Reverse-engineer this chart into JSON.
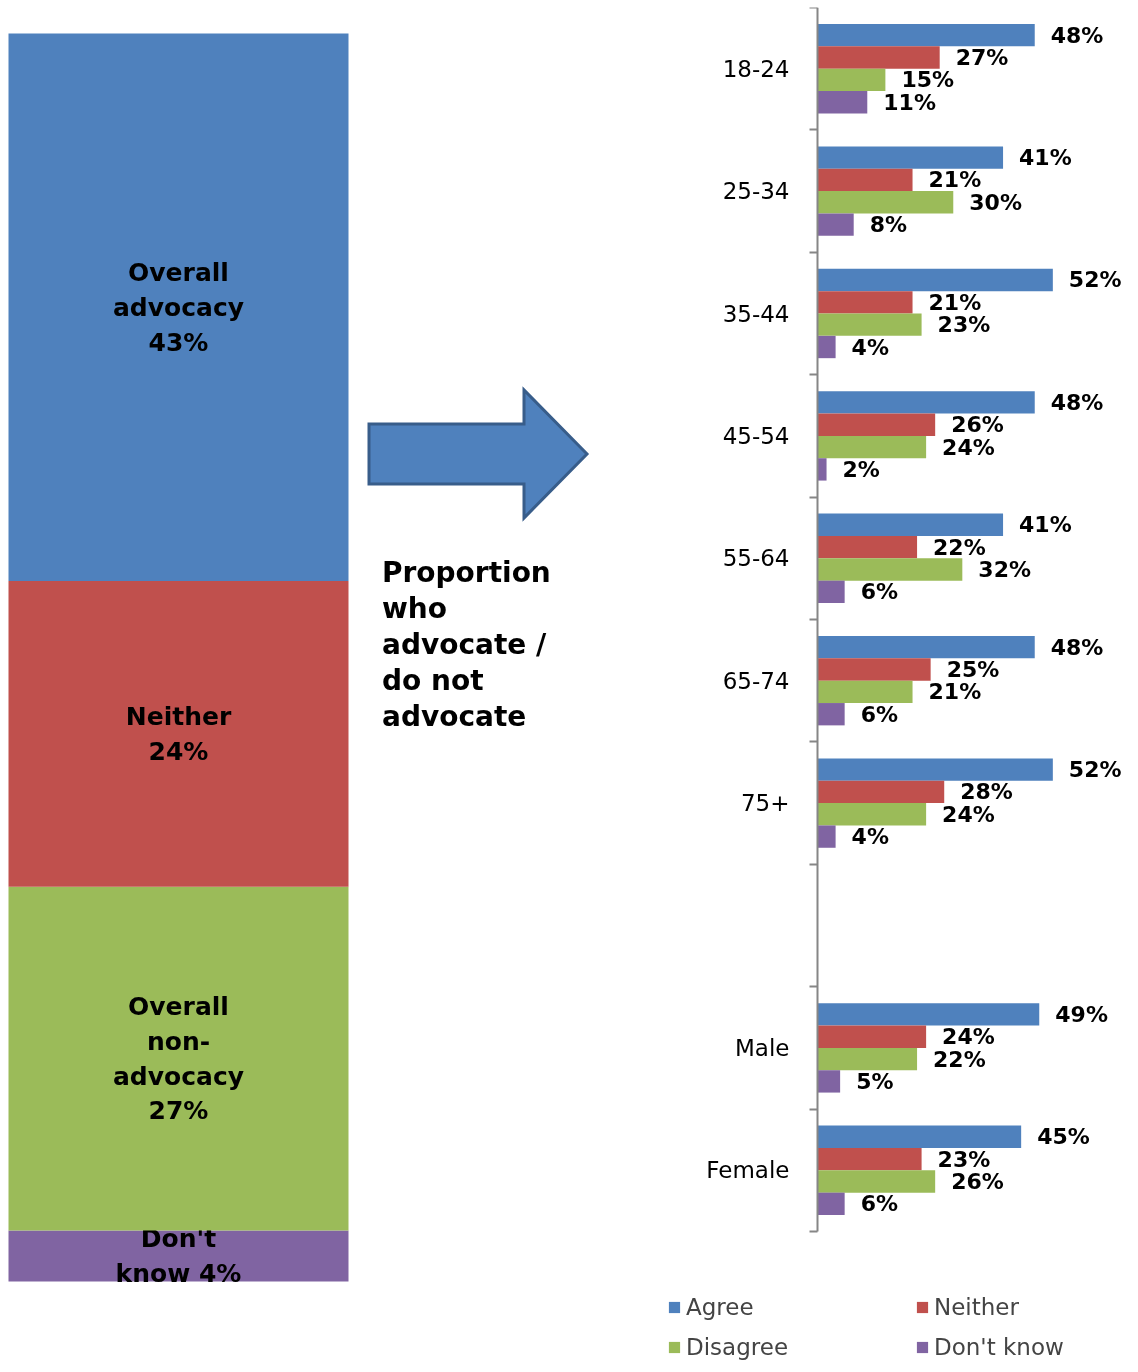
{
  "chart_data": [
    {
      "type": "bar",
      "stacked": true,
      "categories": [
        null
      ],
      "annotations": [
        "Proportion who advocate / do not advocate"
      ],
      "series": [
        {
          "color": "#8064a2",
          "values": [
            4
          ],
          "value_labels": [
            "Don't know 4%"
          ]
        },
        {
          "color": "#9bbb59",
          "values": [
            27
          ],
          "value_labels": [
            "Overall non-advocacy 27%"
          ]
        },
        {
          "color": "#c0504d",
          "values": [
            24
          ],
          "value_labels": [
            "Neither 24%"
          ]
        },
        {
          "color": "#4f81bd",
          "values": [
            43
          ],
          "value_labels": [
            "Overall advocacy 43%"
          ]
        }
      ]
    },
    {
      "type": "bar",
      "orientation": "horizontal",
      "legend": "bottom",
      "categories": [
        "18-24",
        "25-34",
        "35-44",
        "45-54",
        "55-64",
        "65-74",
        "75+",
        null,
        "Male",
        "Female"
      ],
      "series": [
        {
          "name": "Agree",
          "color": "#4f81bd",
          "values": [
            48,
            41,
            52,
            48,
            41,
            48,
            52,
            null,
            49,
            45
          ],
          "value_labels": [
            "48%",
            "41%",
            "52%",
            "48%",
            "41%",
            "48%",
            "52%",
            null,
            "49%",
            "45%"
          ]
        },
        {
          "name": "Neither",
          "color": "#c0504d",
          "values": [
            27,
            21,
            21,
            26,
            22,
            25,
            28,
            null,
            24,
            23
          ],
          "value_labels": [
            "27%",
            "21%",
            "21%",
            "26%",
            "22%",
            "25%",
            "28%",
            null,
            "24%",
            "23%"
          ]
        },
        {
          "name": "Disagree",
          "color": "#9bbb59",
          "values": [
            15,
            30,
            23,
            24,
            32,
            21,
            24,
            null,
            22,
            26
          ],
          "value_labels": [
            "15%",
            "30%",
            "23%",
            "24%",
            "32%",
            "21%",
            "24%",
            null,
            "22%",
            "26%"
          ]
        },
        {
          "name": "Don't know",
          "color": "#8064a2",
          "values": [
            11,
            8,
            4,
            2,
            6,
            6,
            4,
            null,
            5,
            6
          ],
          "value_labels": [
            "11%",
            "8%",
            "4%",
            "2%",
            "6%",
            "6%",
            "4%",
            null,
            "5%",
            "6%"
          ]
        }
      ]
    }
  ]
}
